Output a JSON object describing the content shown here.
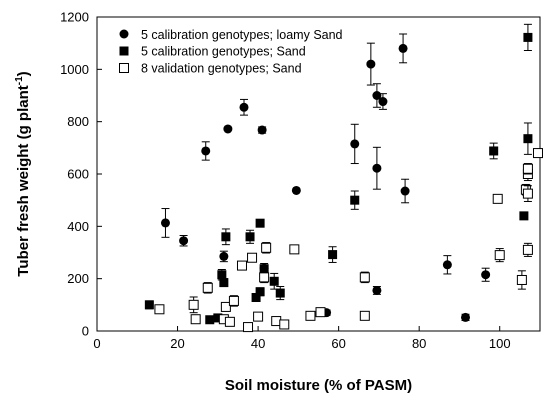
{
  "chart_data": {
    "type": "scatter",
    "title": "",
    "xlabel": "Soil moisture (% of PASM)",
    "ylabel_main": "Tuber fresh weight (g plant",
    "ylabel_sup": "-1",
    "ylabel_tail": ")",
    "xlim": [
      0,
      110
    ],
    "ylim": [
      0,
      1200
    ],
    "x_ticks": [
      "0",
      "20",
      "40",
      "60",
      "80",
      "100"
    ],
    "y_ticks": [
      "0",
      "200",
      "400",
      "600",
      "800",
      "1000",
      "1200"
    ],
    "grid": false,
    "legend_position": "top-left",
    "series": [
      {
        "name": "5 calibration genotypes; loamy Sand",
        "marker": "circle",
        "color": "#000000",
        "points": [
          {
            "x": 17,
            "y": 413,
            "err": 55
          },
          {
            "x": 21.5,
            "y": 345,
            "err": 20
          },
          {
            "x": 27,
            "y": 688,
            "err": 35
          },
          {
            "x": 32.5,
            "y": 772,
            "err": 0
          },
          {
            "x": 36.5,
            "y": 855,
            "err": 30
          },
          {
            "x": 41,
            "y": 768,
            "err": 12
          },
          {
            "x": 49.5,
            "y": 537,
            "err": 0
          },
          {
            "x": 31.5,
            "y": 285,
            "err": 20
          },
          {
            "x": 41.5,
            "y": 240,
            "err": 12
          },
          {
            "x": 57,
            "y": 70,
            "err": 10
          },
          {
            "x": 64,
            "y": 715,
            "err": 75
          },
          {
            "x": 68,
            "y": 1020,
            "err": 80
          },
          {
            "x": 69.5,
            "y": 900,
            "err": 45
          },
          {
            "x": 71,
            "y": 877,
            "err": 30
          },
          {
            "x": 69.5,
            "y": 622,
            "err": 80
          },
          {
            "x": 76,
            "y": 1080,
            "err": 55
          },
          {
            "x": 76.5,
            "y": 535,
            "err": 45
          },
          {
            "x": 69.5,
            "y": 155,
            "err": 15
          },
          {
            "x": 87,
            "y": 253,
            "err": 35
          },
          {
            "x": 91.5,
            "y": 52,
            "err": 12
          },
          {
            "x": 96.5,
            "y": 215,
            "err": 25
          }
        ]
      },
      {
        "name": "5 calibration genotypes; Sand",
        "marker": "square",
        "color": "#000000",
        "points": [
          {
            "x": 13,
            "y": 100,
            "err": 15
          },
          {
            "x": 28,
            "y": 43,
            "err": 8
          },
          {
            "x": 30,
            "y": 50,
            "err": 8
          },
          {
            "x": 31,
            "y": 215,
            "err": 20
          },
          {
            "x": 31.5,
            "y": 185,
            "err": 15
          },
          {
            "x": 32,
            "y": 360,
            "err": 30
          },
          {
            "x": 38,
            "y": 360,
            "err": 25
          },
          {
            "x": 40.5,
            "y": 412,
            "err": 10
          },
          {
            "x": 39.5,
            "y": 128,
            "err": 15
          },
          {
            "x": 40.5,
            "y": 150,
            "err": 15
          },
          {
            "x": 41.5,
            "y": 238,
            "err": 20
          },
          {
            "x": 44,
            "y": 190,
            "err": 30
          },
          {
            "x": 45.5,
            "y": 145,
            "err": 25
          },
          {
            "x": 58.5,
            "y": 292,
            "err": 30
          },
          {
            "x": 64,
            "y": 500,
            "err": 35
          },
          {
            "x": 98.5,
            "y": 688,
            "err": 30
          },
          {
            "x": 106,
            "y": 440,
            "err": 10
          },
          {
            "x": 107,
            "y": 735,
            "err": 60
          },
          {
            "x": 107,
            "y": 1122,
            "err": 50
          }
        ]
      },
      {
        "name": "8 validation genotypes; Sand",
        "marker": "open-square",
        "color": "#000000",
        "points": [
          {
            "x": 15.5,
            "y": 83,
            "err": 8
          },
          {
            "x": 24,
            "y": 100,
            "err": 30
          },
          {
            "x": 24.5,
            "y": 45,
            "err": 15
          },
          {
            "x": 27.5,
            "y": 165,
            "err": 20
          },
          {
            "x": 31.5,
            "y": 45,
            "err": 8
          },
          {
            "x": 32,
            "y": 92,
            "err": 15
          },
          {
            "x": 33,
            "y": 35,
            "err": 8
          },
          {
            "x": 34,
            "y": 115,
            "err": 20
          },
          {
            "x": 36,
            "y": 250,
            "err": 15
          },
          {
            "x": 37.5,
            "y": 15,
            "err": 8
          },
          {
            "x": 38.5,
            "y": 280,
            "err": 15
          },
          {
            "x": 40,
            "y": 55,
            "err": 15
          },
          {
            "x": 41.5,
            "y": 205,
            "err": 20
          },
          {
            "x": 42,
            "y": 318,
            "err": 20
          },
          {
            "x": 44.5,
            "y": 38,
            "err": 10
          },
          {
            "x": 46.5,
            "y": 25,
            "err": 8
          },
          {
            "x": 49,
            "y": 312,
            "err": 15
          },
          {
            "x": 53,
            "y": 58,
            "err": 10
          },
          {
            "x": 55.5,
            "y": 72,
            "err": 15
          },
          {
            "x": 66.5,
            "y": 58,
            "err": 8
          },
          {
            "x": 66.5,
            "y": 205,
            "err": 20
          },
          {
            "x": 99.5,
            "y": 505,
            "err": 15
          },
          {
            "x": 100,
            "y": 290,
            "err": 25
          },
          {
            "x": 105.5,
            "y": 195,
            "err": 35
          },
          {
            "x": 106.5,
            "y": 540,
            "err": 20
          },
          {
            "x": 107,
            "y": 525,
            "err": 30
          },
          {
            "x": 107,
            "y": 600,
            "err": 25
          },
          {
            "x": 107,
            "y": 620,
            "err": 20
          },
          {
            "x": 107,
            "y": 310,
            "err": 25
          },
          {
            "x": 109.5,
            "y": 680,
            "err": 10
          }
        ]
      }
    ]
  }
}
